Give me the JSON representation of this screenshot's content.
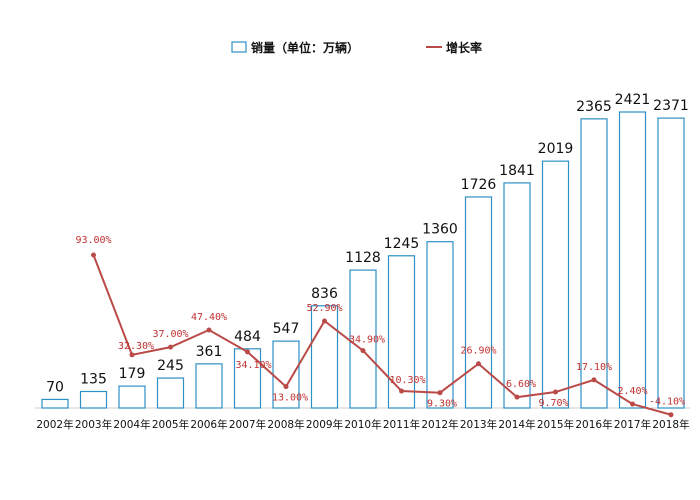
{
  "legend": {
    "sales_label": "销量（单位：万辆）",
    "growth_label": "增长率"
  },
  "colors": {
    "bar_stroke": "#2e8fc4",
    "line": "#b94a48",
    "rate_text": "#c0302f"
  },
  "chart_data": {
    "type": "bar",
    "categories": [
      "2002年",
      "2003年",
      "2004年",
      "2005年",
      "2006年",
      "2007年",
      "2008年",
      "2009年",
      "2010年",
      "2011年",
      "2012年",
      "2013年",
      "2014年",
      "2015年",
      "2016年",
      "2017年",
      "2018年"
    ],
    "series": [
      {
        "name": "销量（单位：万辆）",
        "type": "bar",
        "values": [
          70,
          135,
          179,
          245,
          361,
          484,
          547,
          836,
          1128,
          1245,
          1360,
          1726,
          1841,
          2019,
          2365,
          2421,
          2371
        ],
        "labels": [
          "70",
          "135",
          "179",
          "245",
          "361",
          "484",
          "547",
          "836",
          "1128",
          "1245",
          "1360",
          "1726",
          "1841",
          "2019",
          "2365",
          "2421",
          "2371"
        ]
      },
      {
        "name": "增长率",
        "type": "line",
        "values": [
          null,
          93.0,
          32.3,
          37.0,
          47.4,
          34.1,
          13.0,
          52.9,
          34.9,
          10.3,
          9.3,
          26.9,
          6.6,
          9.7,
          17.1,
          2.4,
          -4.1
        ],
        "labels": [
          "",
          "93.00%",
          "32.30%",
          "37.00%",
          "47.40%",
          "34.10%",
          "13.00%",
          "52.90%",
          "34.90%",
          "10.30%",
          "9.30%",
          "26.90%",
          "6.60%",
          "9.70%",
          "17.10%",
          "2.40%",
          "-4.10%"
        ]
      }
    ],
    "xlabel": "",
    "ylabel": "",
    "grid": false,
    "legend_position": "top-center"
  }
}
